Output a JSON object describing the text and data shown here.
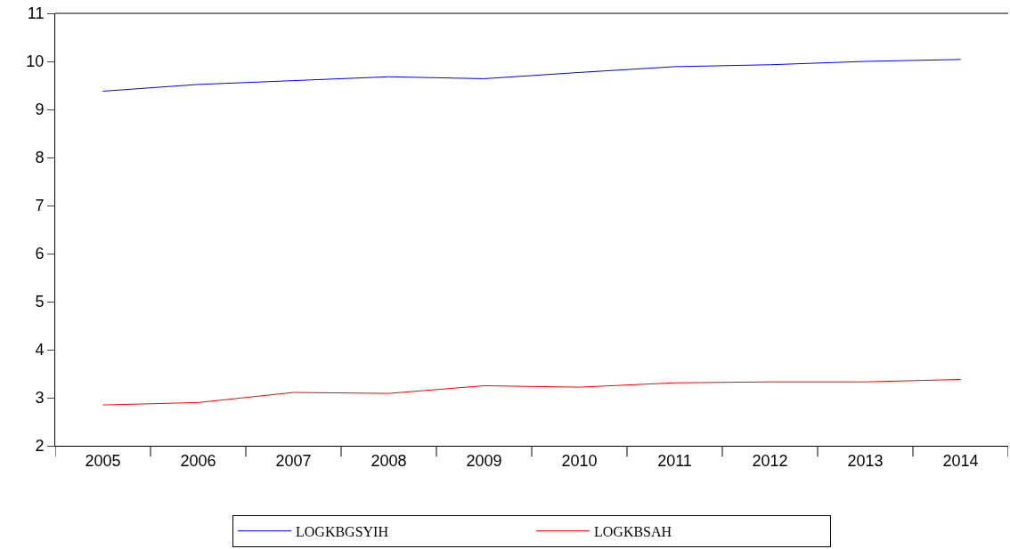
{
  "chart_data": {
    "type": "line",
    "categories": [
      "2005",
      "2006",
      "2007",
      "2008",
      "2009",
      "2010",
      "2011",
      "2012",
      "2013",
      "2014"
    ],
    "series": [
      {
        "name": "LOGKBGSYIH",
        "color": "#0000ff",
        "values": [
          9.38,
          9.52,
          9.6,
          9.68,
          9.64,
          9.77,
          9.89,
          9.93,
          10.0,
          10.04
        ]
      },
      {
        "name": "LOGKBSAH",
        "color": "#ff0000",
        "values": [
          2.85,
          2.9,
          3.11,
          3.09,
          3.25,
          3.22,
          3.31,
          3.33,
          3.33,
          3.38
        ]
      }
    ],
    "ylim": [
      2,
      11
    ],
    "yticks": [
      2,
      3,
      4,
      5,
      6,
      7,
      8,
      9,
      10,
      11
    ],
    "legend": "bottom",
    "marker": "none",
    "line_style": "solid"
  }
}
